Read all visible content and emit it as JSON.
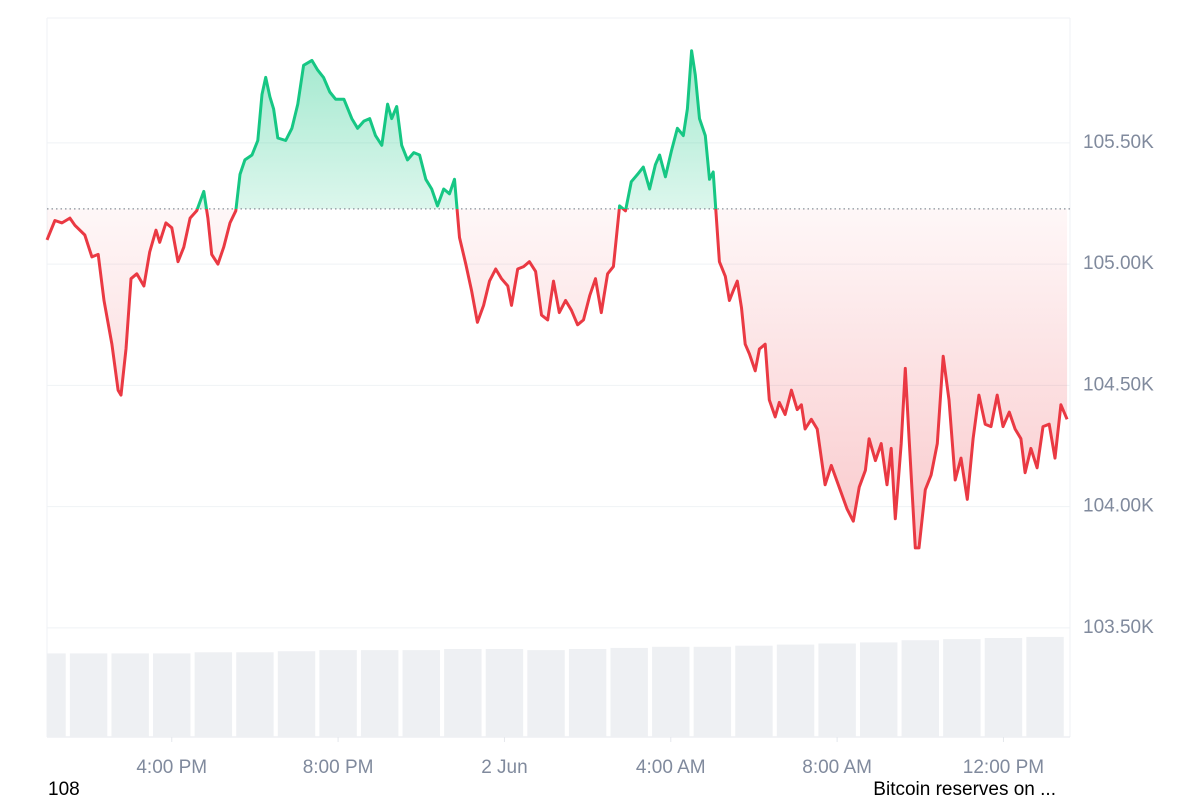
{
  "chart_data": {
    "type": "baseline-line",
    "x": [
      13.0,
      13.19,
      13.36,
      13.55,
      13.67,
      13.91,
      14.08,
      14.23,
      14.37,
      14.56,
      14.71,
      14.78,
      14.9,
      15.02,
      15.16,
      15.33,
      15.47,
      15.62,
      15.71,
      15.86,
      16.0,
      16.15,
      16.29,
      16.44,
      16.6,
      16.77,
      16.87,
      16.96,
      17.11,
      17.25,
      17.4,
      17.54,
      17.64,
      17.76,
      17.93,
      18.07,
      18.17,
      18.26,
      18.36,
      18.45,
      18.55,
      18.74,
      18.89,
      19.03,
      19.17,
      19.37,
      19.51,
      19.65,
      19.8,
      19.94,
      20.14,
      20.33,
      20.47,
      20.62,
      20.76,
      20.9,
      21.05,
      21.19,
      21.29,
      21.41,
      21.53,
      21.67,
      21.82,
      21.96,
      22.11,
      22.25,
      22.39,
      22.54,
      22.68,
      22.8,
      22.92,
      23.07,
      23.21,
      23.35,
      23.5,
      23.64,
      23.79,
      23.93,
      24.08,
      24.17,
      24.32,
      24.46,
      24.6,
      24.75,
      24.89,
      25.04,
      25.18,
      25.32,
      25.47,
      25.61,
      25.76,
      25.9,
      26.05,
      26.19,
      26.33,
      26.48,
      26.62,
      26.77,
      26.91,
      27.05,
      27.2,
      27.34,
      27.49,
      27.63,
      27.73,
      27.87,
      28.02,
      28.16,
      28.3,
      28.4,
      28.5,
      28.59,
      28.69,
      28.83,
      28.93,
      29.02,
      29.17,
      29.31,
      29.41,
      29.5,
      29.6,
      29.7,
      29.79,
      29.89,
      30.03,
      30.13,
      30.27,
      30.37,
      30.51,
      30.61,
      30.75,
      30.9,
      31.04,
      31.14,
      31.23,
      31.38,
      31.52,
      31.71,
      31.86,
      32.05,
      32.24,
      32.39,
      32.53,
      32.68,
      32.77,
      32.92,
      33.06,
      33.2,
      33.3,
      33.4,
      33.54,
      33.64,
      33.73,
      33.88,
      33.97,
      34.12,
      34.26,
      34.41,
      34.55,
      34.69,
      34.84,
      34.98,
      35.13,
      35.27,
      35.41,
      35.56,
      35.7,
      35.85,
      35.99,
      36.14,
      36.28,
      36.42,
      36.52,
      36.66,
      36.81,
      36.95,
      37.1,
      37.24,
      37.38,
      37.53
    ],
    "values": [
      105100,
      105180,
      105170,
      105190,
      105160,
      105120,
      105030,
      105040,
      104850,
      104670,
      104480,
      104460,
      104650,
      104940,
      104960,
      104910,
      105050,
      105140,
      105090,
      105170,
      105150,
      105010,
      105070,
      105190,
      105220,
      105300,
      105190,
      105040,
      105000,
      105070,
      105170,
      105220,
      105370,
      105430,
      105450,
      105510,
      105700,
      105770,
      105690,
      105640,
      105520,
      105510,
      105560,
      105660,
      105820,
      105840,
      105800,
      105770,
      105710,
      105680,
      105680,
      105600,
      105560,
      105590,
      105600,
      105530,
      105490,
      105660,
      105600,
      105650,
      105490,
      105430,
      105460,
      105450,
      105350,
      105310,
      105240,
      105310,
      105290,
      105350,
      105110,
      105000,
      104890,
      104760,
      104830,
      104930,
      104980,
      104940,
      104910,
      104830,
      104980,
      104990,
      105010,
      104970,
      104790,
      104770,
      104930,
      104800,
      104850,
      104810,
      104750,
      104770,
      104870,
      104940,
      104800,
      104960,
      104990,
      105240,
      105220,
      105340,
      105370,
      105400,
      105310,
      105410,
      105450,
      105360,
      105470,
      105560,
      105530,
      105640,
      105880,
      105780,
      105600,
      105530,
      105350,
      105380,
      105010,
      104950,
      104850,
      104890,
      104930,
      104820,
      104670,
      104630,
      104560,
      104650,
      104670,
      104440,
      104370,
      104430,
      104380,
      104480,
      104400,
      104420,
      104320,
      104360,
      104320,
      104090,
      104170,
      104080,
      103990,
      103940,
      104080,
      104150,
      104280,
      104190,
      104260,
      104090,
      104240,
      103950,
      104260,
      104570,
      104280,
      103830,
      103830,
      104070,
      104130,
      104260,
      104620,
      104440,
      104110,
      104200,
      104030,
      104280,
      104460,
      104340,
      104330,
      104460,
      104330,
      104390,
      104320,
      104280,
      104140,
      104240,
      104160,
      104330,
      104340,
      104200,
      104420,
      104360
    ],
    "baseline": 105228,
    "up_color": "#16c784",
    "down_color": "#ea3943",
    "xlim": [
      13,
      37.6
    ],
    "ylim": [
      103050,
      106015
    ],
    "xticks": [
      {
        "value": 16,
        "label": "4:00 PM"
      },
      {
        "value": 20,
        "label": "8:00 PM"
      },
      {
        "value": 24,
        "label": "2 Jun"
      },
      {
        "value": 28,
        "label": "4:00 AM"
      },
      {
        "value": 32,
        "label": "8:00 AM"
      },
      {
        "value": 36,
        "label": "12:00 PM"
      }
    ],
    "yticks": [
      {
        "value": 103500,
        "label": "103.50K"
      },
      {
        "value": 104000,
        "label": "104.00K"
      },
      {
        "value": 104500,
        "label": "104.50K"
      },
      {
        "value": 105000,
        "label": "105.00K"
      },
      {
        "value": 105500,
        "label": "105.50K"
      }
    ],
    "grid": true,
    "volume": {
      "color": "#eef0f3",
      "ylim": [
        0,
        100
      ],
      "x": [
        13,
        14,
        15,
        16,
        17,
        18,
        19,
        20,
        21,
        22,
        23,
        24,
        25,
        26,
        27,
        28,
        29,
        30,
        31,
        32,
        33,
        34,
        35,
        36,
        37
      ],
      "values": [
        76,
        76,
        76,
        76,
        77,
        77,
        78,
        79,
        79,
        79,
        80,
        80,
        79,
        80,
        81,
        82,
        82,
        83,
        84,
        85,
        86,
        88,
        89,
        90,
        91
      ]
    }
  },
  "overlay": {
    "left": "108",
    "right": "Bitcoin reserves on ..."
  }
}
